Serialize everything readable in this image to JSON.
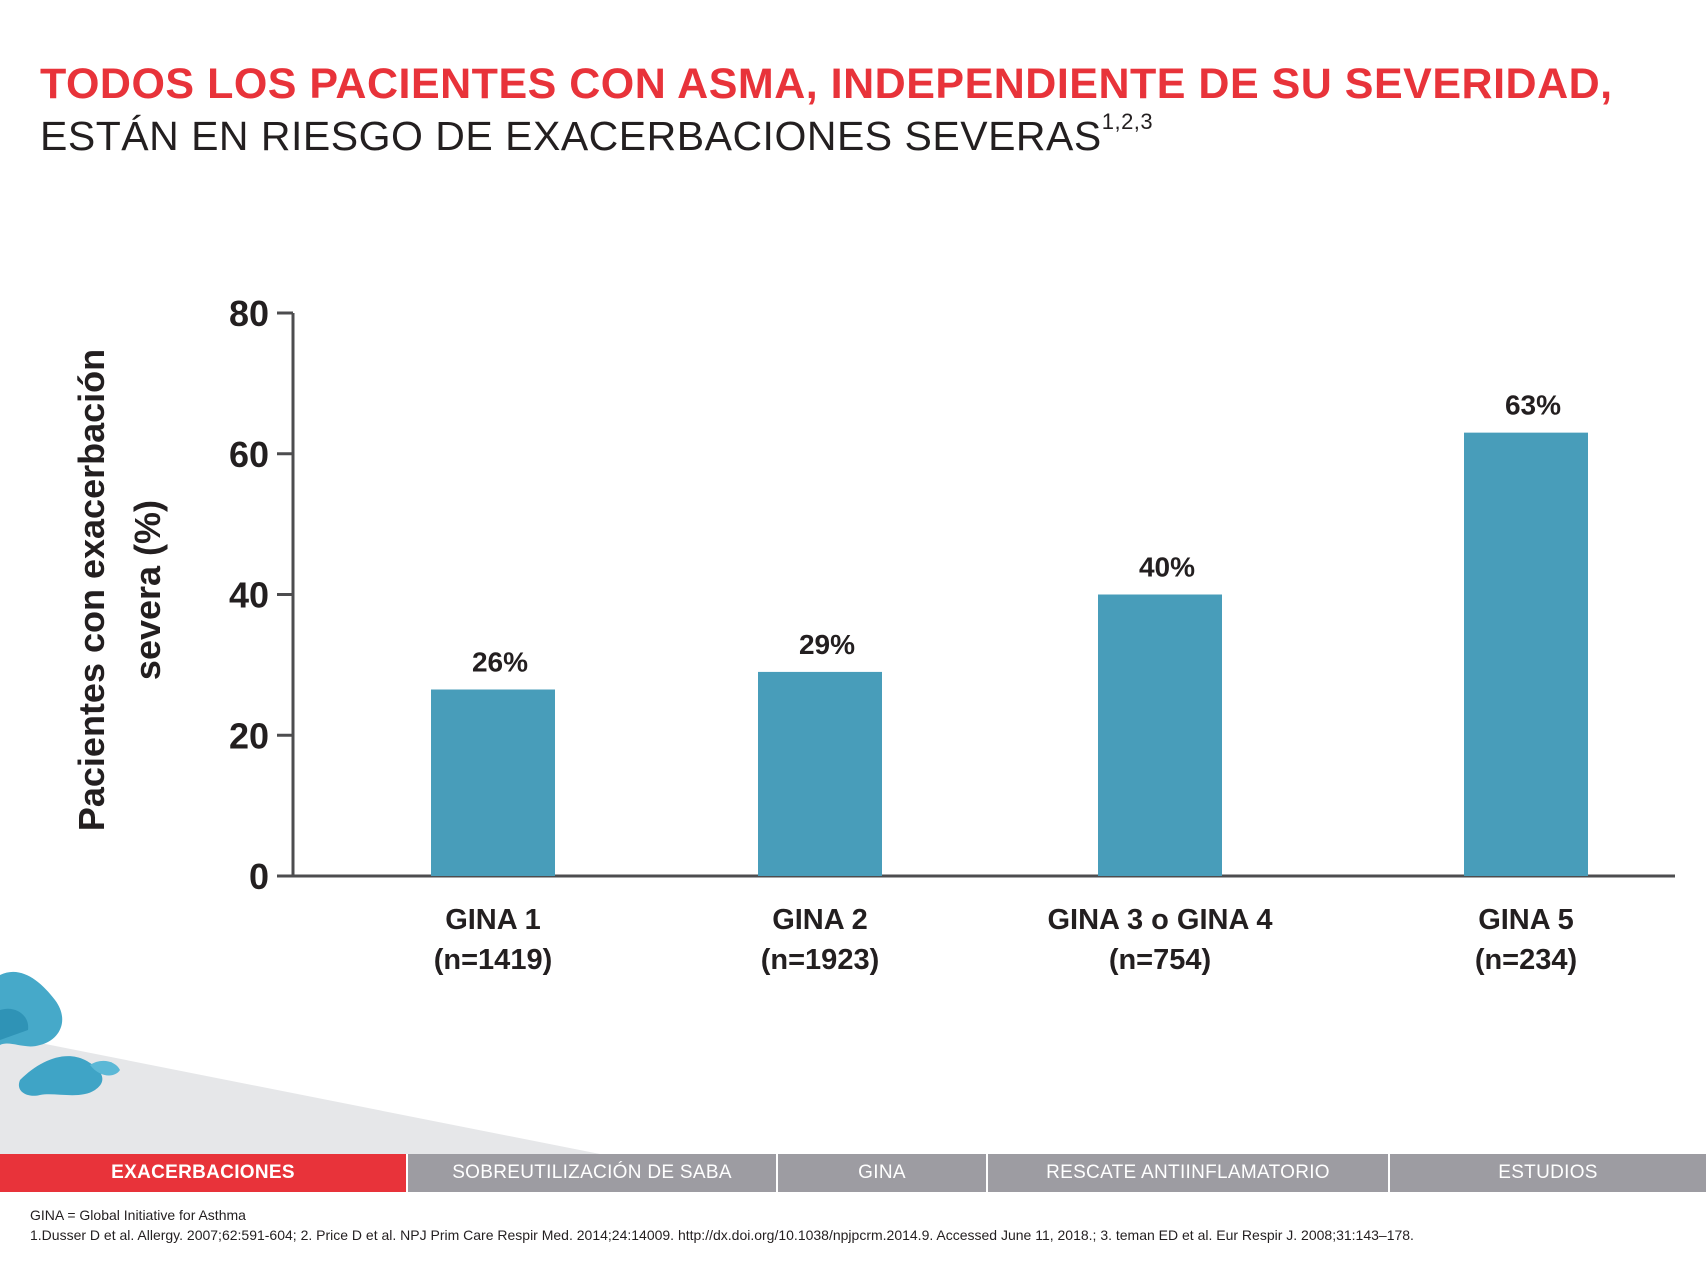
{
  "title": {
    "line1": "TODOS LOS PACIENTES CON ASMA, INDEPENDIENTE DE SU SEVERIDAD,",
    "line2": "ESTÁN EN RIESGO DE EXACERBACIONES SEVERAS",
    "line2_superscript": "1,2,3"
  },
  "chart_data": {
    "type": "bar",
    "ylabel_line1": "Pacientes con exacerbación",
    "ylabel_line2": "severa (%)",
    "ylim": [
      0,
      80
    ],
    "yticks": [
      "0",
      "20",
      "40",
      "60",
      "80"
    ],
    "categories": [
      {
        "name": "GINA 1",
        "n": "(n=1419)"
      },
      {
        "name": "GINA 2",
        "n": "(n=1923)"
      },
      {
        "name": "GINA 3 o GINA 4",
        "n": "(n=754)"
      },
      {
        "name": "GINA 5",
        "n": "(n=234)"
      }
    ],
    "values": [
      26.5,
      29,
      40,
      63
    ],
    "value_labels": [
      "26%",
      "29%",
      "40%",
      "63%"
    ],
    "bar_color": "#489dba",
    "grid": false
  },
  "tabs": [
    {
      "label": "EXACERBACIONES",
      "active": true
    },
    {
      "label": "SOBREUTILIZACIÓN DE SABA",
      "active": false
    },
    {
      "label": "GINA",
      "active": false
    },
    {
      "label": "RESCATE ANTIINFLAMATORIO",
      "active": false
    },
    {
      "label": "ESTUDIOS",
      "active": false
    }
  ],
  "footer": {
    "abbreviation": "GINA = Global Initiative for Asthma",
    "references": "1.Dusser D et al. Allergy. 2007;62:591-604; 2. Price D et al. NPJ Prim Care Respir Med. 2014;24:14009. http://dx.doi.org/10.1038/npjpcrm.2014.9. Accessed June 11, 2018.; 3. teman ED et al. Eur Respir J. 2008;31:143–178."
  },
  "colors": {
    "accent_red": "#e8333a",
    "tab_gray": "#9d9ca2",
    "bar_blue": "#489dba"
  }
}
